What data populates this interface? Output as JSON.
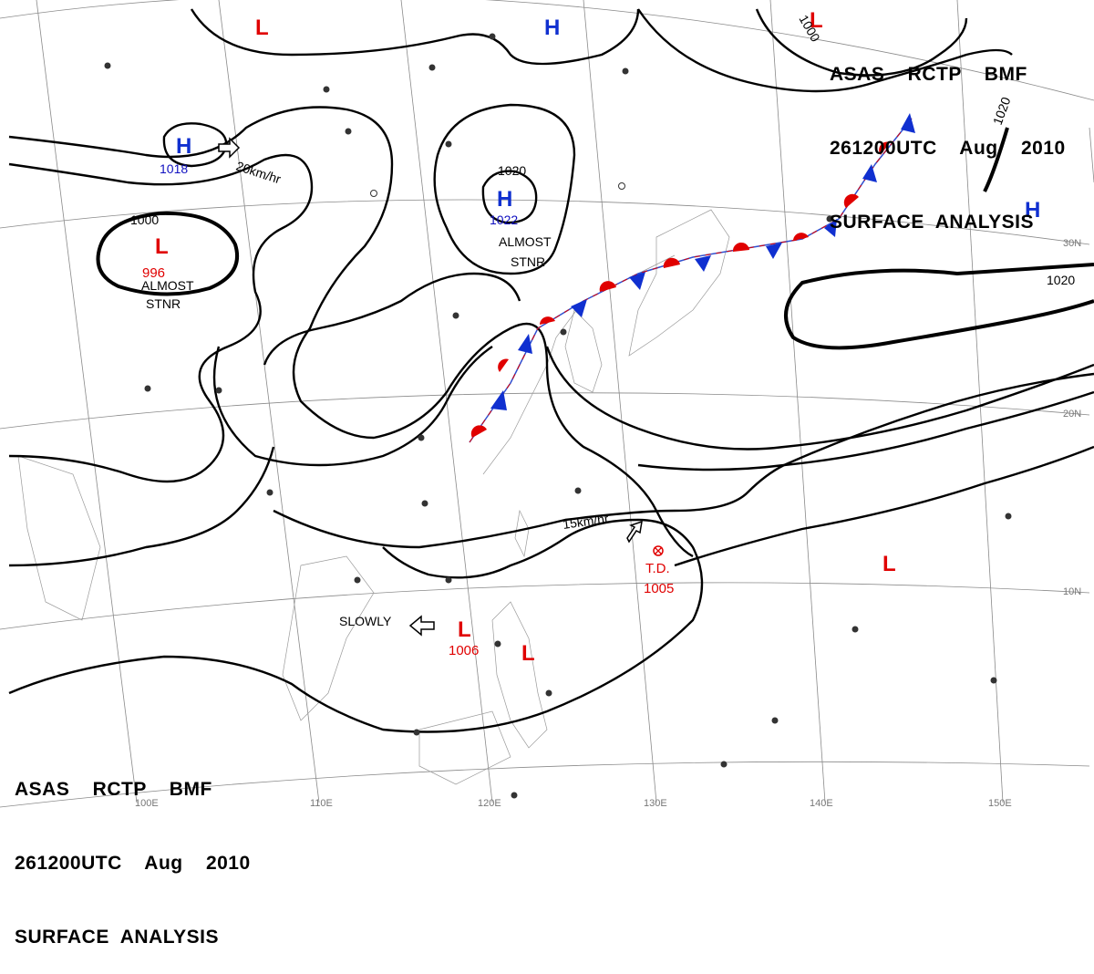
{
  "header_top": {
    "line1": "ASAS    RCTP    BMF",
    "line2": "261200UTC    Aug    2010",
    "line3": "SURFACE  ANALYSIS"
  },
  "header_bottom": {
    "line1": "ASAS    RCTP    BMF",
    "line2": "261200UTC    Aug    2010",
    "line3": "SURFACE  ANALYSIS"
  },
  "pressure_centers": {
    "l_topleft": "L",
    "h_topmid": "H",
    "l_topright": "L",
    "h_west": "H",
    "h_west_pressure": "1018",
    "l_west": "L",
    "l_west_pressure": "996",
    "h_north": "H",
    "h_north_pressure": "1022",
    "h_east": "H",
    "l_philippines": "L",
    "l_philippines_pressure": "1006",
    "l_luzon": "L",
    "l_pacific": "L",
    "td_label": "T.D.",
    "td_pressure": "1005"
  },
  "annotations": {
    "almost_stnr_1": "ALMOST",
    "stnr_1": "STNR",
    "almost_stnr_2": "ALMOST",
    "stnr_2": "STNR",
    "speed_west": "20km/hr",
    "speed_td": "15km/hr",
    "slowly": "SLOWLY"
  },
  "isobar_labels": {
    "i1000_west": "1000",
    "i1020_north": "1020",
    "i1020_east": "1020",
    "i1020_ne": "1020",
    "i1000_top": "1000"
  },
  "grid_labels": {
    "lon_110": "110E",
    "lon_120": "120E",
    "lon_130": "130E",
    "lon_140": "140E",
    "lon_150": "150E",
    "lon_100": "100E",
    "lat_30": "30N",
    "lat_20": "20N",
    "lat_10": "10N"
  },
  "colors": {
    "low": "#e00000",
    "high": "#1030d0",
    "warm_front": "#e00000",
    "cold_front": "#1030d0"
  }
}
